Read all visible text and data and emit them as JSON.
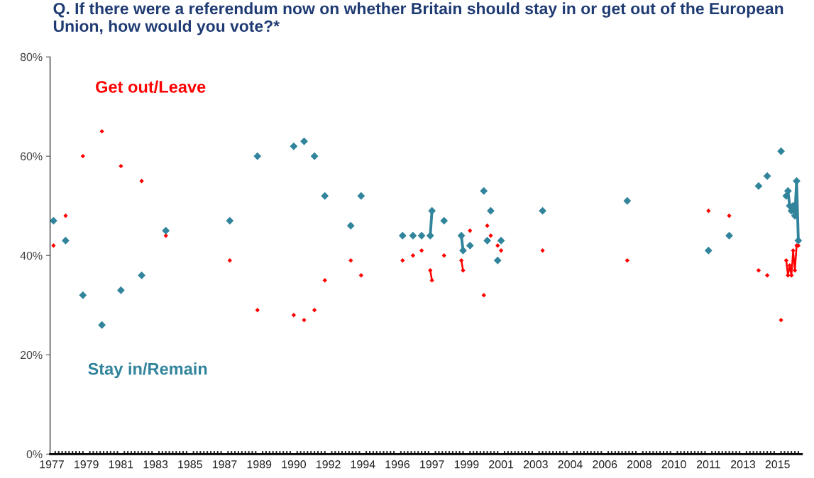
{
  "chart_data": {
    "type": "line",
    "title": "Q. If there were a referendum now on whether Britain should stay in or get out of the European Union, how would you vote?*",
    "categories": [
      "1977",
      null,
      null,
      null,
      null,
      null,
      null,
      null,
      null,
      null,
      null,
      null,
      null,
      null,
      null,
      null,
      null,
      null,
      null,
      null,
      "1979",
      null,
      null,
      null,
      null,
      null,
      null,
      null,
      null,
      null,
      null,
      null,
      null,
      null,
      null,
      null,
      null,
      null,
      null,
      null,
      "1981",
      null,
      null,
      null,
      null,
      null,
      null,
      null,
      null,
      null,
      null,
      null,
      null,
      null,
      null,
      null,
      null,
      null,
      null,
      null,
      "1983",
      null,
      null,
      null,
      null,
      null,
      null,
      null,
      null,
      null,
      null,
      null,
      null,
      null,
      null,
      null,
      null,
      null,
      null,
      null,
      "1985",
      null,
      null,
      null,
      null,
      null,
      null,
      null,
      null,
      null,
      null,
      null,
      null,
      null,
      null,
      null,
      null,
      null,
      null,
      null,
      "1987",
      null,
      null,
      null,
      null,
      null,
      null,
      null,
      null,
      null,
      null,
      null,
      null,
      null,
      null,
      null,
      null,
      null,
      null,
      null,
      "1989",
      null,
      null,
      null,
      null,
      null,
      null,
      null,
      null,
      null,
      null,
      null,
      null,
      null,
      null,
      null,
      null,
      null,
      null,
      null,
      "1990",
      null,
      null,
      null,
      null,
      null,
      null,
      null,
      null,
      null,
      null,
      null,
      null,
      null,
      null,
      null,
      null,
      null,
      null,
      null,
      "1992",
      null,
      null,
      null,
      null,
      null,
      null,
      null,
      null,
      null,
      null,
      null,
      null,
      null,
      null,
      null,
      null,
      null,
      null,
      null,
      "1994",
      null,
      null,
      null,
      null,
      null,
      null,
      null,
      null,
      null,
      null,
      null,
      null,
      null,
      null,
      null,
      null,
      null,
      null,
      null,
      "1996",
      null,
      null,
      null,
      null,
      null,
      null,
      null,
      null,
      null,
      null,
      null,
      null,
      null,
      null,
      null,
      null,
      null,
      null,
      null,
      "1997",
      null,
      null,
      null,
      null,
      null,
      null,
      null,
      null,
      null,
      null,
      null,
      null,
      null,
      null,
      null,
      null,
      null,
      null,
      null,
      "1999",
      null,
      null,
      null,
      null,
      null,
      null,
      null,
      null,
      null,
      null,
      null,
      null,
      null,
      null,
      null,
      null,
      null,
      null,
      null,
      "2001",
      null,
      null,
      null,
      null,
      null,
      null,
      null,
      null,
      null,
      null,
      null,
      null,
      null,
      null,
      null,
      null,
      null,
      null,
      null,
      "2003",
      null,
      null,
      null,
      null,
      null,
      null,
      null,
      null,
      null,
      null,
      null,
      null,
      null,
      null,
      null,
      null,
      null,
      null,
      null,
      "2004",
      null,
      null,
      null,
      null,
      null,
      null,
      null,
      null,
      null,
      null,
      null,
      null,
      null,
      null,
      null,
      null,
      null,
      null,
      null,
      "2006",
      null,
      null,
      null,
      null,
      null,
      null,
      null,
      null,
      null,
      null,
      null,
      null,
      null,
      null,
      null,
      null,
      null,
      null,
      null,
      "2008",
      null,
      null,
      null,
      null,
      null,
      null,
      null,
      null,
      null,
      null,
      null,
      null,
      null,
      null,
      null,
      null,
      null,
      null,
      null,
      "2010",
      null,
      null,
      null,
      null,
      null,
      null,
      null,
      null,
      null,
      null,
      null,
      null,
      null,
      null,
      null,
      null,
      null,
      null,
      null,
      "2011",
      null,
      null,
      null,
      null,
      null,
      null,
      null,
      null,
      null,
      null,
      null,
      null,
      null,
      null,
      null,
      null,
      null,
      null,
      null,
      "2013",
      null,
      null,
      null,
      null,
      null,
      null,
      null,
      null,
      null,
      null,
      null,
      null,
      null,
      null,
      null,
      null,
      null,
      null,
      null,
      "2015",
      null,
      null,
      null,
      null,
      null,
      null,
      null,
      null,
      null,
      null,
      null,
      null
    ],
    "series": [
      {
        "name": "Get out/Leave",
        "color": "#ff0000",
        "values": [
          null,
          42,
          null,
          null,
          null,
          null,
          null,
          null,
          48,
          null,
          null,
          null,
          null,
          null,
          null,
          null,
          null,
          null,
          60,
          null,
          null,
          null,
          null,
          null,
          null,
          null,
          null,
          null,
          null,
          65,
          null,
          null,
          null,
          null,
          null,
          null,
          null,
          null,
          null,
          null,
          58,
          null,
          null,
          null,
          null,
          null,
          null,
          null,
          null,
          null,
          null,
          null,
          55,
          null,
          null,
          null,
          null,
          null,
          null,
          null,
          null,
          null,
          null,
          null,
          null,
          null,
          44,
          null,
          null,
          null,
          null,
          null,
          null,
          null,
          null,
          null,
          null,
          null,
          null,
          null,
          null,
          null,
          null,
          null,
          null,
          null,
          null,
          null,
          null,
          null,
          null,
          null,
          null,
          null,
          null,
          null,
          null,
          null,
          null,
          null,
          null,
          null,
          null,
          39,
          null,
          null,
          null,
          null,
          null,
          null,
          null,
          null,
          null,
          null,
          null,
          null,
          null,
          null,
          null,
          29,
          null,
          null,
          null,
          null,
          null,
          null,
          null,
          null,
          null,
          null,
          null,
          null,
          null,
          null,
          null,
          null,
          null,
          null,
          null,
          null,
          28,
          null,
          null,
          null,
          null,
          null,
          27,
          null,
          null,
          null,
          null,
          null,
          29,
          null,
          null,
          null,
          null,
          null,
          35,
          null,
          null,
          null,
          null,
          null,
          null,
          null,
          null,
          null,
          null,
          null,
          null,
          null,
          null,
          39,
          null,
          null,
          null,
          null,
          null,
          36,
          null,
          null,
          null,
          null,
          null,
          null,
          null,
          null,
          null,
          null,
          null,
          null,
          null,
          null,
          null,
          null,
          null,
          null,
          null,
          null,
          null,
          null,
          null,
          39,
          null,
          null,
          null,
          null,
          null,
          40,
          null,
          null,
          null,
          null,
          41,
          null,
          null,
          null,
          null,
          37,
          35,
          null,
          null,
          null,
          null,
          null,
          null,
          40,
          null,
          null,
          null,
          null,
          null,
          null,
          null,
          null,
          null,
          39,
          37,
          null,
          null,
          null,
          45,
          null,
          null,
          null,
          null,
          null,
          null,
          null,
          32,
          null,
          46,
          null,
          44,
          null,
          null,
          null,
          42,
          null,
          41,
          null,
          null,
          null,
          null,
          null,
          null,
          null,
          null,
          null,
          null,
          null,
          null,
          null,
          null,
          null,
          null,
          null,
          null,
          null,
          null,
          null,
          null,
          null,
          41,
          null,
          null,
          null,
          null,
          null,
          null,
          null,
          null,
          null,
          null,
          null,
          null,
          null,
          null,
          null,
          null,
          null,
          null,
          null,
          null,
          null,
          null,
          null,
          null,
          null,
          null,
          null,
          null,
          null,
          null,
          null,
          null,
          null,
          null,
          null,
          null,
          null,
          null,
          null,
          null,
          null,
          null,
          null,
          null,
          null,
          null,
          null,
          null,
          39,
          null,
          null,
          null,
          null,
          null,
          null,
          null,
          null,
          null,
          null,
          null,
          null,
          null,
          null,
          null,
          null,
          null,
          null,
          null,
          null,
          null,
          null,
          null,
          null,
          null,
          null,
          null,
          null,
          null,
          null,
          null,
          null,
          null,
          null,
          null,
          null,
          null,
          null,
          null,
          null,
          null,
          null,
          null,
          null,
          null,
          null,
          49,
          null,
          null,
          null,
          null,
          null,
          null,
          null,
          null,
          null,
          null,
          null,
          48,
          null,
          null,
          null,
          null,
          null,
          null,
          null,
          null,
          null,
          null,
          null,
          null,
          null,
          null,
          null,
          null,
          37,
          null,
          null,
          null,
          null,
          36,
          null,
          null,
          null,
          null,
          null,
          null,
          null,
          27,
          null,
          null,
          39,
          36,
          38,
          36,
          41,
          37,
          42,
          42
        ]
      },
      {
        "name": "Stay in/Remain",
        "color": "#31849b",
        "values": [
          null,
          47,
          null,
          null,
          null,
          null,
          null,
          null,
          43,
          null,
          null,
          null,
          null,
          null,
          null,
          null,
          null,
          null,
          32,
          null,
          null,
          null,
          null,
          null,
          null,
          null,
          null,
          null,
          null,
          26,
          null,
          null,
          null,
          null,
          null,
          null,
          null,
          null,
          null,
          null,
          33,
          null,
          null,
          null,
          null,
          null,
          null,
          null,
          null,
          null,
          null,
          null,
          36,
          null,
          null,
          null,
          null,
          null,
          null,
          null,
          null,
          null,
          null,
          null,
          null,
          null,
          45,
          null,
          null,
          null,
          null,
          null,
          null,
          null,
          null,
          null,
          null,
          null,
          null,
          null,
          null,
          null,
          null,
          null,
          null,
          null,
          null,
          null,
          null,
          null,
          null,
          null,
          null,
          null,
          null,
          null,
          null,
          null,
          null,
          null,
          null,
          null,
          null,
          47,
          null,
          null,
          null,
          null,
          null,
          null,
          null,
          null,
          null,
          null,
          null,
          null,
          null,
          null,
          null,
          60,
          null,
          null,
          null,
          null,
          null,
          null,
          null,
          null,
          null,
          null,
          null,
          null,
          null,
          null,
          null,
          null,
          null,
          null,
          null,
          null,
          62,
          null,
          null,
          null,
          null,
          null,
          63,
          null,
          null,
          null,
          null,
          null,
          60,
          null,
          null,
          null,
          null,
          null,
          52,
          null,
          null,
          null,
          null,
          null,
          null,
          null,
          null,
          null,
          null,
          null,
          null,
          null,
          null,
          46,
          null,
          null,
          null,
          null,
          null,
          52,
          null,
          null,
          null,
          null,
          null,
          null,
          null,
          null,
          null,
          null,
          null,
          null,
          null,
          null,
          null,
          null,
          null,
          null,
          null,
          null,
          null,
          null,
          null,
          44,
          null,
          null,
          null,
          null,
          null,
          44,
          null,
          null,
          null,
          null,
          44,
          null,
          null,
          null,
          null,
          44,
          49,
          null,
          null,
          null,
          null,
          null,
          null,
          47,
          null,
          null,
          null,
          null,
          null,
          null,
          null,
          null,
          null,
          44,
          41,
          null,
          null,
          null,
          42,
          null,
          null,
          null,
          null,
          null,
          null,
          null,
          53,
          null,
          43,
          null,
          49,
          null,
          null,
          null,
          39,
          null,
          43,
          null,
          null,
          null,
          null,
          null,
          null,
          null,
          null,
          null,
          null,
          null,
          null,
          null,
          null,
          null,
          null,
          null,
          null,
          null,
          null,
          null,
          null,
          null,
          49,
          null,
          null,
          null,
          null,
          null,
          null,
          null,
          null,
          null,
          null,
          null,
          null,
          null,
          null,
          null,
          null,
          null,
          null,
          null,
          null,
          null,
          null,
          null,
          null,
          null,
          null,
          null,
          null,
          null,
          null,
          null,
          null,
          null,
          null,
          null,
          null,
          null,
          null,
          null,
          null,
          null,
          null,
          null,
          null,
          null,
          null,
          null,
          null,
          51,
          null,
          null,
          null,
          null,
          null,
          null,
          null,
          null,
          null,
          null,
          null,
          null,
          null,
          null,
          null,
          null,
          null,
          null,
          null,
          null,
          null,
          null,
          null,
          null,
          null,
          null,
          null,
          null,
          null,
          null,
          null,
          null,
          null,
          null,
          null,
          null,
          null,
          null,
          null,
          null,
          null,
          null,
          null,
          null,
          null,
          null,
          41,
          null,
          null,
          null,
          null,
          null,
          null,
          null,
          null,
          null,
          null,
          null,
          44,
          null,
          null,
          null,
          null,
          null,
          null,
          null,
          null,
          null,
          null,
          null,
          null,
          null,
          null,
          null,
          null,
          54,
          null,
          null,
          null,
          null,
          56,
          null,
          null,
          null,
          null,
          null,
          null,
          null,
          61,
          null,
          null,
          52,
          53,
          50,
          49,
          50,
          48,
          55,
          43
        ]
      }
    ],
    "ylim": [
      0,
      80
    ],
    "yticks": [
      {
        "value": 0,
        "label": "0%"
      },
      {
        "value": 20,
        "label": "20%"
      },
      {
        "value": 40,
        "label": "40%"
      },
      {
        "value": 60,
        "label": "60%"
      },
      {
        "value": 80,
        "label": "80%"
      }
    ],
    "marker": "diamond",
    "line_style": "solid",
    "grid": false,
    "legend": false
  }
}
